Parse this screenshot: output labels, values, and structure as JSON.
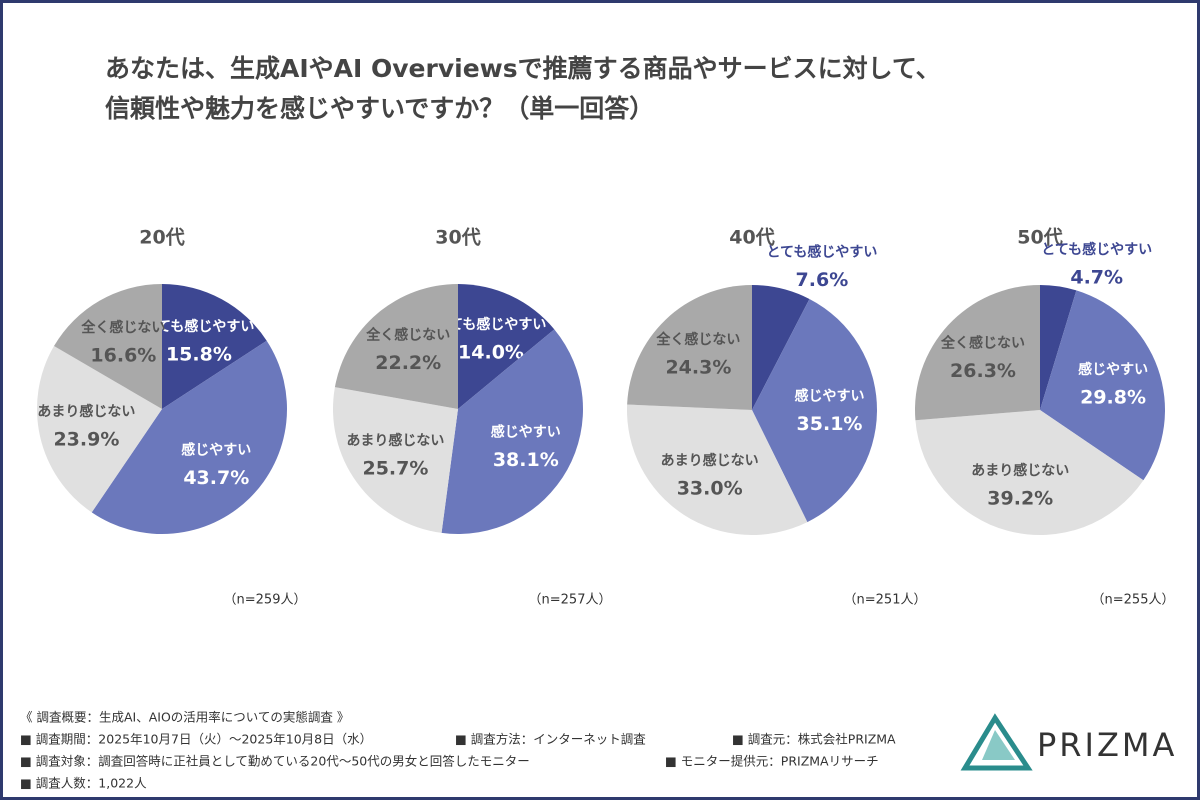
{
  "title": [
    "あなたは、生成AIやAI Overviewsで推薦する商品やサービスに対して、",
    "信頼性や魅力を感じやすいですか？（単一回答）"
  ],
  "chart_data": [
    {
      "type": "pie",
      "title": "20代",
      "categories": [
        "とても感じやすい",
        "感じやすい",
        "あまり感じない",
        "全く感じない"
      ],
      "values": [
        15.8,
        43.7,
        23.9,
        16.6
      ],
      "value_labels": [
        "15.8%",
        "43.7%",
        "23.9%",
        "16.6%"
      ],
      "colors": [
        "#3d4792",
        "#6b78bc",
        "#e0e0e0",
        "#a9a9a9"
      ],
      "note": "（n=259人）"
    },
    {
      "type": "pie",
      "title": "30代",
      "categories": [
        "とても感じやすい",
        "感じやすい",
        "あまり感じない",
        "全く感じない"
      ],
      "values": [
        14.0,
        38.1,
        25.7,
        22.2
      ],
      "value_labels": [
        "14.0%",
        "38.1%",
        "25.7%",
        "22.2%"
      ],
      "colors": [
        "#3d4792",
        "#6b78bc",
        "#e0e0e0",
        "#a9a9a9"
      ],
      "note": "（n=257人）"
    },
    {
      "type": "pie",
      "title": "40代",
      "categories": [
        "とても感じやすい",
        "感じやすい",
        "あまり感じない",
        "全く感じない"
      ],
      "values": [
        7.6,
        35.1,
        33.0,
        24.3
      ],
      "value_labels": [
        "7.6%",
        "35.1%",
        "33.0%",
        "24.3%"
      ],
      "colors": [
        "#3d4792",
        "#6b78bc",
        "#e0e0e0",
        "#a9a9a9"
      ],
      "note": "（n=251人）"
    },
    {
      "type": "pie",
      "title": "50代",
      "categories": [
        "とても感じやすい",
        "感じやすい",
        "あまり感じない",
        "全く感じない"
      ],
      "values": [
        4.7,
        29.8,
        39.2,
        26.3
      ],
      "value_labels": [
        "4.7%",
        "29.8%",
        "39.2%",
        "26.3%"
      ],
      "colors": [
        "#3d4792",
        "#6b78bc",
        "#e0e0e0",
        "#a9a9a9"
      ],
      "note": "（n=255人）"
    }
  ],
  "notes": [
    "《 調査概要：生成AI、AIOの活用率についての実態調査 》",
    "■ 調査期間：2025年10月7日（火）〜2025年10月8日（水）",
    "■ 調査方法：インターネット調査",
    "■ 調査元：株式会社PRIZMA",
    "■ 調査対象：調査回答時に正社員として勤めている20代〜50代の男女と回答したモニター",
    "■ モニター提供元：PRIZMAリサーチ",
    "■ 調査人数：1,022人"
  ],
  "logo": "PRIZMA"
}
